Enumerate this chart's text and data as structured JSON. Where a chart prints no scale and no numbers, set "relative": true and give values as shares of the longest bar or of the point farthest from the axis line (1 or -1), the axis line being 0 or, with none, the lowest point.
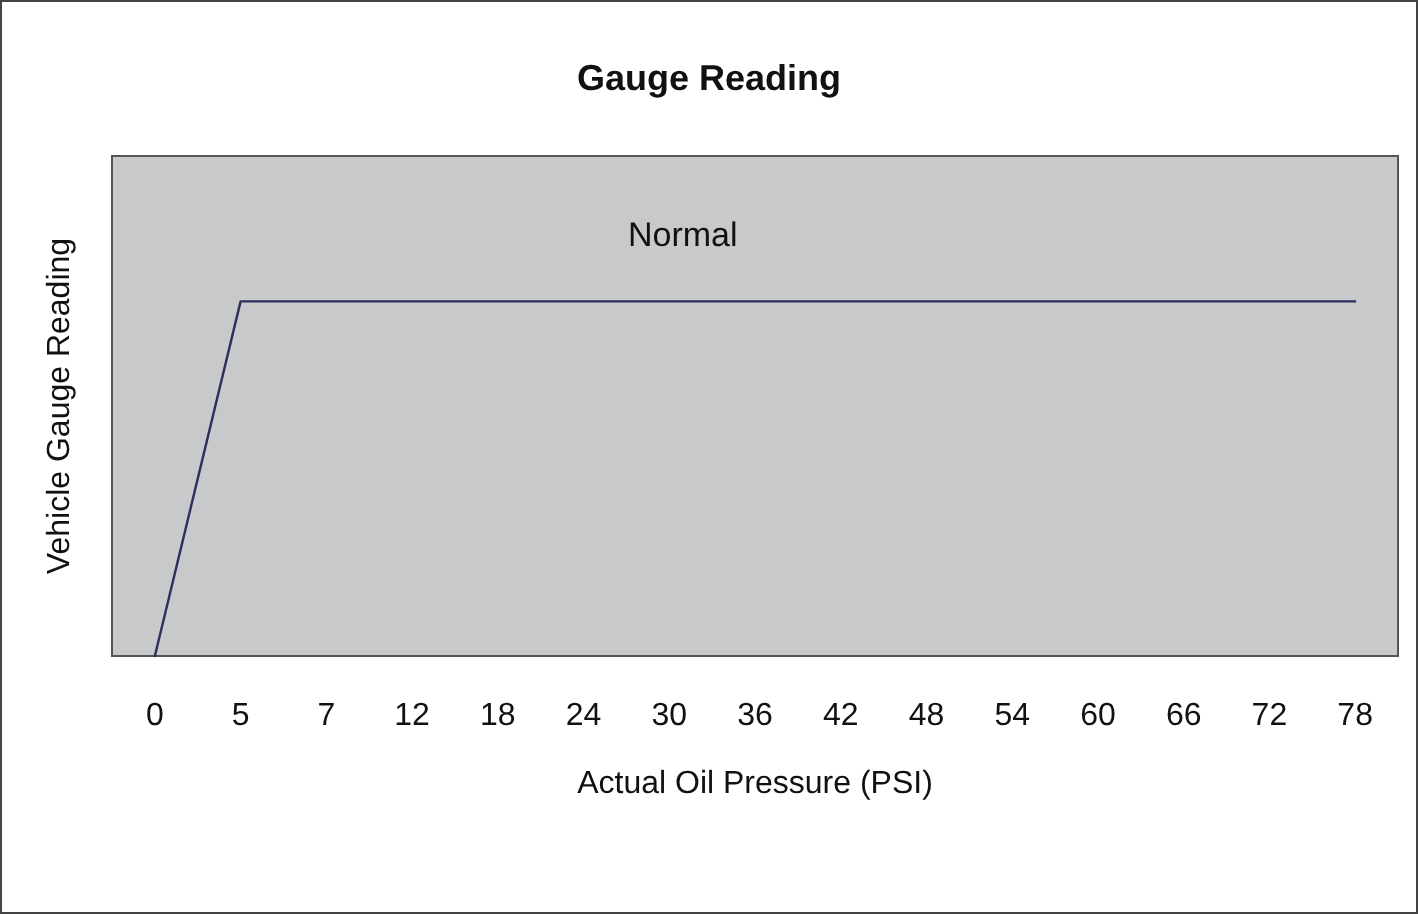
{
  "chart_data": {
    "type": "line",
    "title": "Gauge Reading",
    "xlabel": "Actual Oil Pressure (PSI)",
    "ylabel": "Vehicle Gauge Reading",
    "annotations": [
      "Normal"
    ],
    "categories": [
      "0",
      "5",
      "7",
      "12",
      "18",
      "24",
      "30",
      "36",
      "42",
      "48",
      "54",
      "60",
      "66",
      "72",
      "78"
    ],
    "relative": true,
    "grid": false,
    "marker": "none",
    "line_style": "solid",
    "series": [
      {
        "color": "#2e2d5e",
        "values": [
          0,
          1,
          1,
          1,
          1,
          1,
          1,
          1,
          1,
          1,
          1,
          1,
          1,
          1,
          1
        ]
      }
    ]
  }
}
